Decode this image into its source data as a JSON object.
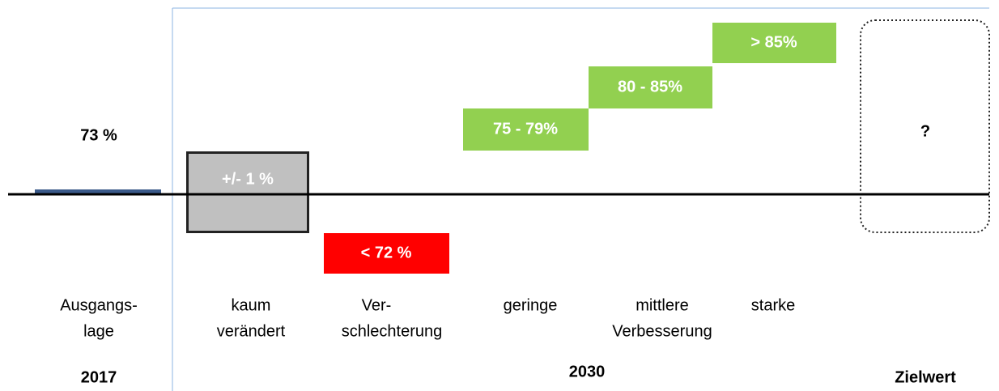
{
  "baseline": {
    "value_text": "73 %",
    "label": [
      "Ausgangs-",
      "lage"
    ],
    "year": "2017"
  },
  "scenarios": [
    {
      "box": "+/- 1 %",
      "label": [
        "kaum",
        "verändert"
      ]
    },
    {
      "box": "< 72 %",
      "label": [
        "Ver-",
        "schlechterung"
      ]
    },
    {
      "box": "75 - 79%",
      "label": [
        "geringe"
      ]
    },
    {
      "box": "80 - 85%",
      "label": [
        "mittlere",
        "Verbesserung"
      ]
    },
    {
      "box": "> 85%",
      "label": [
        "starke"
      ]
    }
  ],
  "period": "2030",
  "target": {
    "box": "?",
    "label": "Zielwert"
  }
}
